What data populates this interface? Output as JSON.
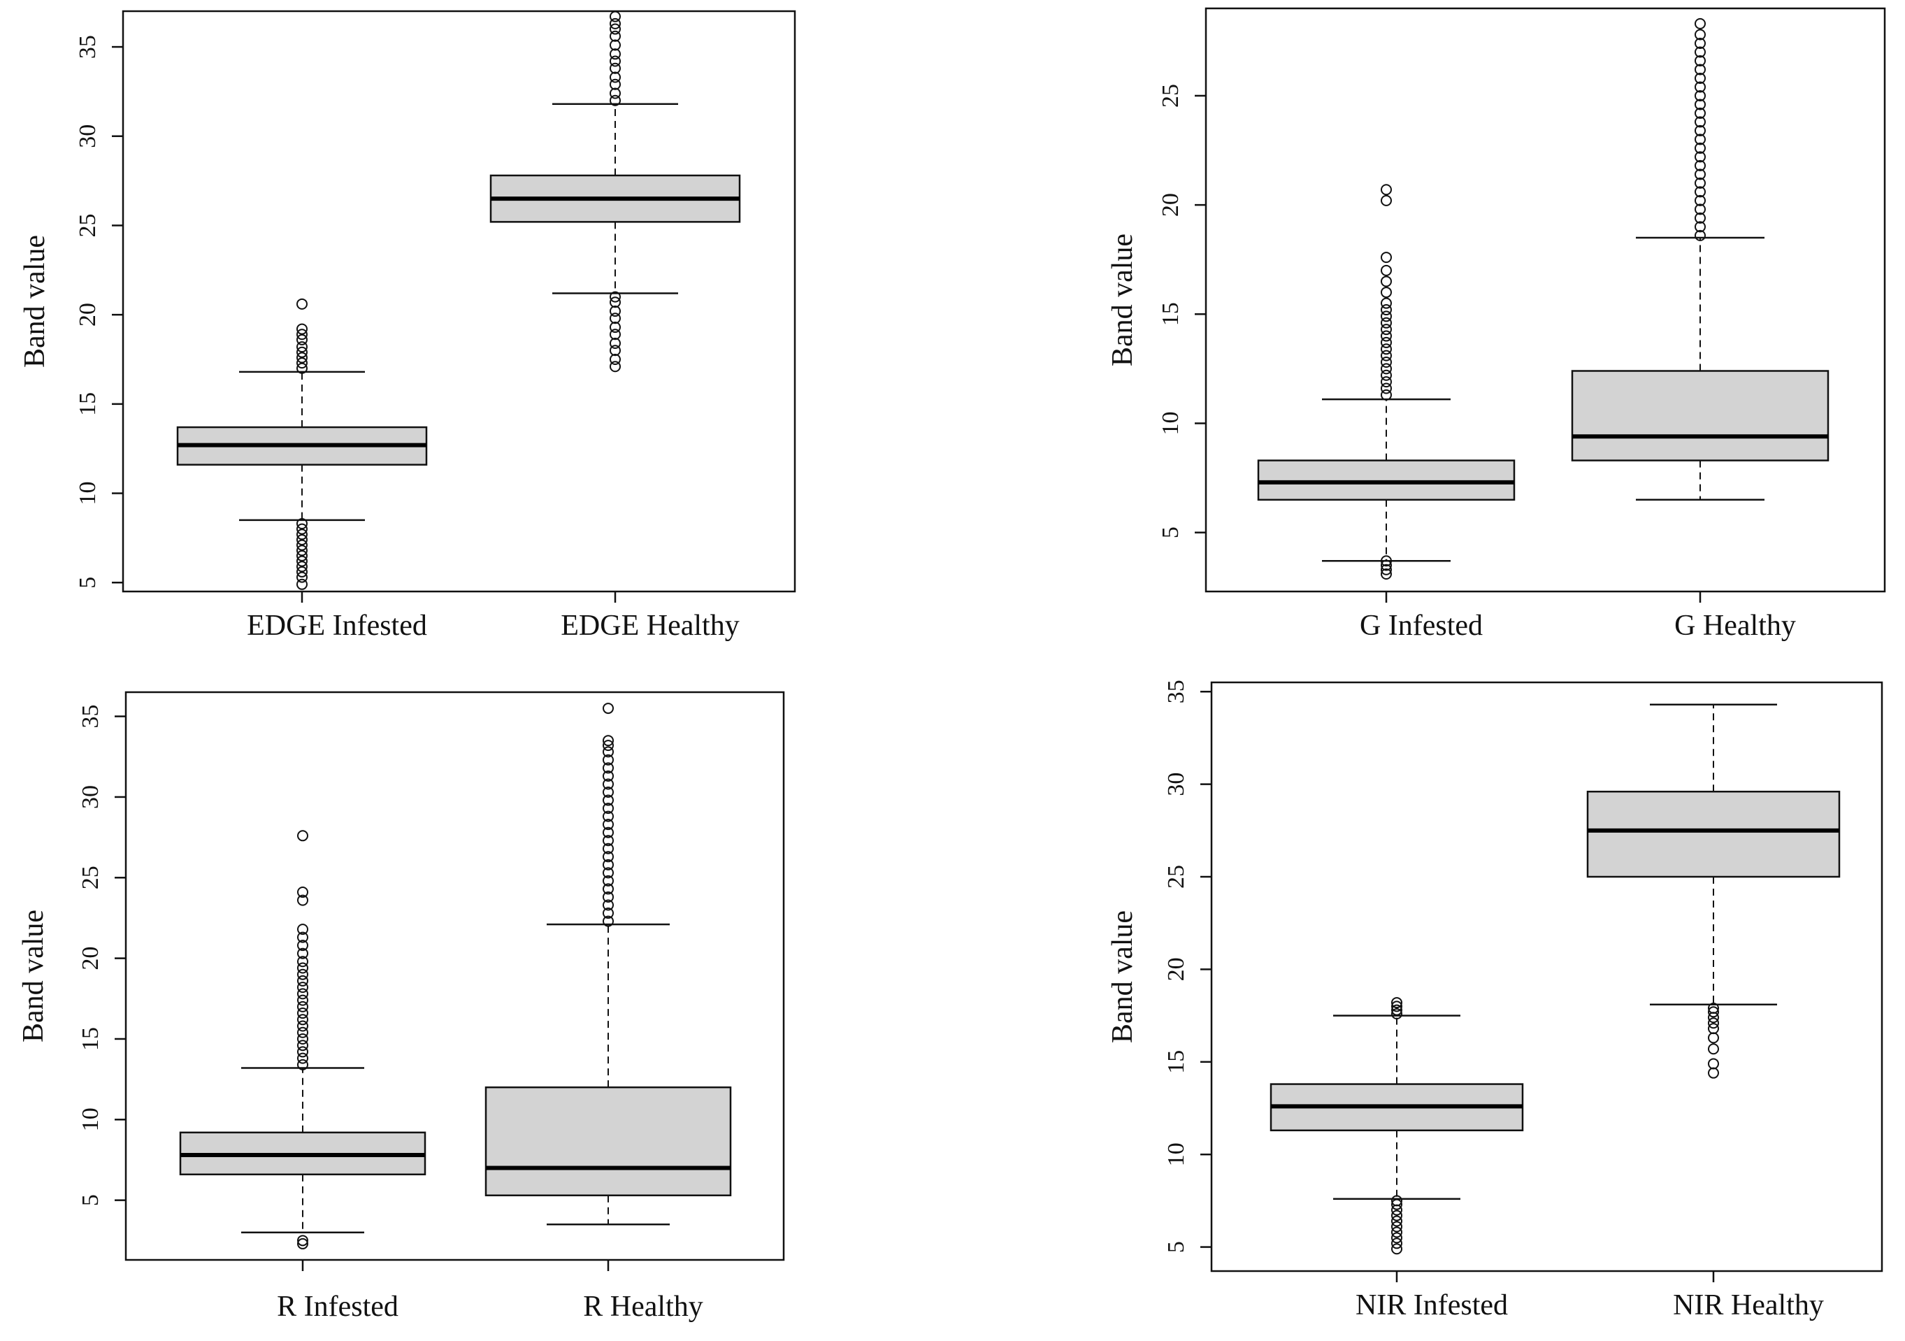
{
  "figure": {
    "chart_data": [
      {
        "type": "boxplot",
        "title": "",
        "ylabel": "Band value",
        "ylim": [
          4.5,
          37.0
        ],
        "yticks": [
          5,
          10,
          15,
          20,
          25,
          30,
          35
        ],
        "categories": [
          "EDGE Infested",
          "EDGE Healthy"
        ],
        "boxes": [
          {
            "name": "EDGE Infested",
            "whisker_low": 8.5,
            "q1": 11.6,
            "median": 12.7,
            "q3": 13.7,
            "whisker_high": 16.8,
            "outliers": [
              4.9,
              5.3,
              5.6,
              5.9,
              6.2,
              6.5,
              6.8,
              7.1,
              7.4,
              7.7,
              8.0,
              8.3,
              17.0,
              17.3,
              17.6,
              17.9,
              18.2,
              18.6,
              18.9,
              19.2,
              20.6
            ]
          },
          {
            "name": "EDGE Healthy",
            "whisker_low": 21.2,
            "q1": 25.2,
            "median": 26.5,
            "q3": 27.8,
            "whisker_high": 31.8,
            "outliers": [
              17.1,
              17.5,
              18.0,
              18.4,
              18.9,
              19.3,
              19.8,
              20.2,
              20.7,
              21.0,
              32.0,
              32.4,
              32.9,
              33.3,
              33.8,
              34.2,
              34.6,
              35.1,
              35.6,
              36.0,
              36.3,
              36.7
            ]
          }
        ]
      },
      {
        "type": "boxplot",
        "title": "",
        "ylabel": "Band value",
        "ylim": [
          2.3,
          29.0
        ],
        "yticks": [
          5,
          10,
          15,
          20,
          25
        ],
        "categories": [
          "G Infested",
          "G Healthy"
        ],
        "boxes": [
          {
            "name": "G Infested",
            "whisker_low": 3.7,
            "q1": 6.5,
            "median": 7.3,
            "q3": 8.3,
            "whisker_high": 11.1,
            "outliers": [
              3.1,
              3.3,
              3.5,
              3.7,
              11.3,
              11.6,
              11.9,
              12.2,
              12.5,
              12.8,
              13.1,
              13.4,
              13.7,
              14.0,
              14.3,
              14.6,
              14.9,
              15.2,
              15.5,
              16.0,
              16.5,
              17.0,
              17.6,
              20.2,
              20.7
            ]
          },
          {
            "name": "G Healthy",
            "whisker_low": 6.5,
            "q1": 8.3,
            "median": 9.4,
            "q3": 12.4,
            "whisker_high": 18.5,
            "outliers": [
              18.6,
              19.0,
              19.4,
              19.8,
              20.2,
              20.6,
              21.0,
              21.4,
              21.8,
              22.2,
              22.6,
              23.0,
              23.4,
              23.8,
              24.2,
              24.6,
              25.0,
              25.4,
              25.8,
              26.2,
              26.6,
              27.0,
              27.4,
              27.8,
              28.3
            ]
          }
        ]
      },
      {
        "type": "boxplot",
        "title": "",
        "ylabel": "Band value",
        "ylim": [
          1.3,
          36.5
        ],
        "yticks": [
          5,
          10,
          15,
          20,
          25,
          30,
          35
        ],
        "categories": [
          "R Infested",
          "R Healthy"
        ],
        "boxes": [
          {
            "name": "R Infested",
            "whisker_low": 3.0,
            "q1": 6.6,
            "median": 7.8,
            "q3": 9.2,
            "whisker_high": 13.2,
            "outliers": [
              2.3,
              2.5,
              13.4,
              13.8,
              14.2,
              14.6,
              15.0,
              15.4,
              15.8,
              16.2,
              16.6,
              17.0,
              17.4,
              17.8,
              18.2,
              18.6,
              19.0,
              19.4,
              19.8,
              20.3,
              20.8,
              21.3,
              21.8,
              23.6,
              24.1,
              27.6
            ]
          },
          {
            "name": "R Healthy",
            "whisker_low": 3.5,
            "q1": 5.3,
            "median": 7.0,
            "q3": 12.0,
            "whisker_high": 22.1,
            "outliers": [
              22.3,
              22.8,
              23.3,
              23.8,
              24.3,
              24.8,
              25.3,
              25.8,
              26.3,
              26.8,
              27.3,
              27.8,
              28.3,
              28.8,
              29.3,
              29.8,
              30.3,
              30.8,
              31.3,
              31.8,
              32.3,
              32.8,
              33.2,
              33.5,
              35.5
            ]
          }
        ]
      },
      {
        "type": "boxplot",
        "title": "",
        "ylabel": "Band value",
        "ylim": [
          3.7,
          35.5
        ],
        "yticks": [
          5,
          10,
          15,
          20,
          25,
          30,
          35
        ],
        "categories": [
          "NIR Infested",
          "NIR Healthy"
        ],
        "boxes": [
          {
            "name": "NIR Infested",
            "whisker_low": 7.6,
            "q1": 11.3,
            "median": 12.6,
            "q3": 13.8,
            "whisker_high": 17.5,
            "outliers": [
              4.9,
              5.2,
              5.5,
              5.8,
              6.1,
              6.4,
              6.7,
              7.0,
              7.3,
              7.5,
              17.6,
              17.8,
              18.0,
              18.2
            ]
          },
          {
            "name": "NIR Healthy",
            "whisker_low": 18.1,
            "q1": 25.0,
            "median": 27.5,
            "q3": 29.6,
            "whisker_high": 34.3,
            "outliers": [
              14.4,
              14.9,
              15.7,
              16.3,
              16.8,
              17.1,
              17.4,
              17.7,
              17.9
            ]
          }
        ]
      }
    ]
  }
}
